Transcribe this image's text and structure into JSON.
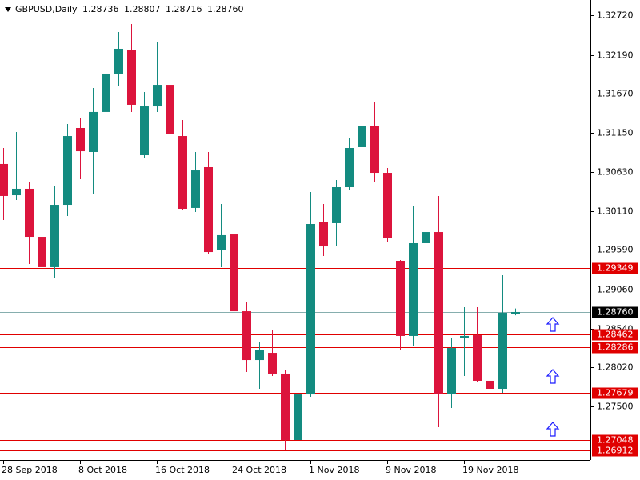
{
  "chart_data": {
    "type": "candlestick",
    "title": "GBPUSD,Daily",
    "quote_labels": [
      "1.28736",
      "1.28807",
      "1.28716",
      "1.28760"
    ],
    "categories": [
      "28 Sep 2018",
      null,
      null,
      null,
      null,
      null,
      "8 Oct 2018",
      null,
      null,
      null,
      null,
      null,
      "16 Oct 2018",
      null,
      null,
      null,
      null,
      null,
      "24 Oct 2018",
      null,
      null,
      null,
      null,
      null,
      "1 Nov 2018",
      null,
      null,
      null,
      null,
      null,
      "9 Nov 2018",
      null,
      null,
      null,
      null,
      null,
      "19 Nov 2018",
      null,
      null,
      null,
      null
    ],
    "open": [
      1.30735,
      1.30318,
      1.30404,
      1.29763,
      1.29358,
      1.3019,
      1.31215,
      1.30895,
      1.31429,
      1.31941,
      1.32261,
      1.30852,
      1.31503,
      1.31791,
      1.31108,
      1.30148,
      1.30692,
      1.29582,
      1.29795,
      1.2877,
      1.28119,
      1.28215,
      1.27938,
      1.27052,
      1.2766,
      1.29966,
      1.29945,
      1.30425,
      1.30959,
      1.31247,
      1.30617,
      1.29443,
      1.2844,
      1.29678,
      1.29827,
      1.27671,
      1.28418,
      1.2845,
      1.27842,
      1.27735,
      1.28736
    ],
    "high": [
      1.30948,
      1.31162,
      1.30489,
      1.30094,
      1.30446,
      1.31268,
      1.31343,
      1.31749,
      1.32176,
      1.32496,
      1.32603,
      1.31695,
      1.32368,
      1.31909,
      1.31322,
      1.30895,
      1.30895,
      1.30201,
      1.29902,
      1.28888,
      1.28354,
      1.28525,
      1.27991,
      1.2829,
      1.30361,
      1.30201,
      1.30521,
      1.31087,
      1.3177,
      1.31567,
      1.30681,
      1.29454,
      1.3018,
      1.30724,
      1.30308,
      1.28418,
      1.28824,
      1.28824,
      1.28205,
      1.29251,
      1.28807
    ],
    "low": [
      1.29987,
      1.30254,
      1.294,
      1.29229,
      1.29208,
      1.30041,
      1.30532,
      1.30329,
      1.31322,
      1.3177,
      1.31429,
      1.30809,
      1.31429,
      1.3098,
      1.30126,
      1.30094,
      1.29528,
      1.29358,
      1.28738,
      1.27959,
      1.27735,
      1.27906,
      1.26924,
      1.26998,
      1.27628,
      1.29507,
      1.29646,
      1.30382,
      1.30895,
      1.30489,
      1.29699,
      1.28247,
      1.28311,
      1.2876,
      1.27223,
      1.27479,
      1.27906,
      1.27831,
      1.27628,
      1.27682,
      1.28716
    ],
    "close": [
      1.30308,
      1.30404,
      1.29763,
      1.29358,
      1.3019,
      1.31108,
      1.30905,
      1.31429,
      1.31941,
      1.32272,
      1.31525,
      1.31503,
      1.31791,
      1.3113,
      1.30137,
      1.30649,
      1.2956,
      1.29785,
      1.2877,
      1.28119,
      1.28258,
      1.27938,
      1.27052,
      1.2766,
      1.29934,
      1.29635,
      1.30425,
      1.30948,
      1.31247,
      1.30617,
      1.29742,
      1.2844,
      1.29678,
      1.29827,
      1.27671,
      1.28279,
      1.2844,
      1.27842,
      1.27735,
      1.28749,
      1.2876
    ],
    "up_color": "#138b80",
    "down_color": "#dc143c",
    "ylim": [
      1.26785,
      1.32923
    ],
    "yticks": [
      {
        "value": 1.3272,
        "label": "1.32720"
      },
      {
        "value": 1.3219,
        "label": "1.32190"
      },
      {
        "value": 1.3167,
        "label": "1.31670"
      },
      {
        "value": 1.3115,
        "label": "1.31150"
      },
      {
        "value": 1.3063,
        "label": "1.30630"
      },
      {
        "value": 1.3011,
        "label": "1.30110"
      },
      {
        "value": 1.2959,
        "label": "1.29590"
      },
      {
        "value": 1.2906,
        "label": "1.29060"
      },
      {
        "value": 1.2854,
        "label": "1.28540"
      },
      {
        "value": 1.2802,
        "label": "1.28020"
      },
      {
        "value": 1.275,
        "label": "1.27500"
      }
    ],
    "levels": [
      {
        "value": 1.29349,
        "label": "1.29349"
      },
      {
        "value": 1.28462,
        "label": "1.28462"
      },
      {
        "value": 1.28286,
        "label": "1.28286"
      },
      {
        "value": 1.27679,
        "label": "1.27679"
      },
      {
        "value": 1.27048,
        "label": "1.27048"
      },
      {
        "value": 1.26912,
        "label": "1.26912"
      }
    ],
    "level_color": "#e00000",
    "current_price": {
      "value": 1.2876,
      "label": "1.28760"
    },
    "current_color": "#86aeae"
  }
}
